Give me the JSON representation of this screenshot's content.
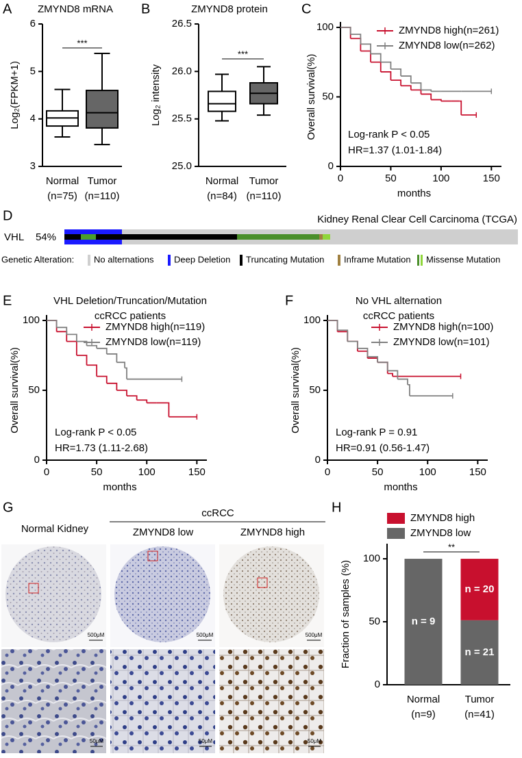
{
  "chart_data": [
    {
      "type": "box",
      "label": "A",
      "title": "ZMYND8 mRNA",
      "ylabel": "Log₂(FPKM+1)",
      "categories": [
        "Normal",
        "Tumor"
      ],
      "category_notes": [
        "(n=75)",
        "(n=110)"
      ],
      "boxes": [
        {
          "min": 3.62,
          "q1": 3.85,
          "median": 4.02,
          "q3": 4.17,
          "max": 4.62
        },
        {
          "min": 3.46,
          "q1": 3.81,
          "median": 4.13,
          "q3": 4.6,
          "max": 5.38
        }
      ],
      "colors": [
        "#ffffff",
        "#666666"
      ],
      "ylim": [
        3,
        6
      ],
      "yticks": [
        3,
        4,
        5,
        6
      ],
      "significance": "***"
    },
    {
      "type": "box",
      "label": "B",
      "title": "ZMYND8 protein",
      "ylabel": "Log₂ intensity",
      "categories": [
        "Normal",
        "Tumor"
      ],
      "category_notes": [
        "(n=84)",
        "(n=110)"
      ],
      "boxes": [
        {
          "min": 25.48,
          "q1": 25.58,
          "median": 25.66,
          "q3": 25.79,
          "max": 25.97
        },
        {
          "min": 25.54,
          "q1": 25.66,
          "median": 25.77,
          "q3": 25.88,
          "max": 26.05
        }
      ],
      "colors": [
        "#ffffff",
        "#666666"
      ],
      "ylim": [
        25,
        26.5
      ],
      "yticks": [
        {
          "value": 25,
          "label": "25.0"
        },
        25.5,
        {
          "value": 26,
          "label": "26.0"
        },
        26.5
      ],
      "significance": "***"
    },
    {
      "type": "survival",
      "label": "C",
      "xlabel": "months",
      "ylabel": "Overall survival(%)",
      "xlim": [
        0,
        160
      ],
      "xticks": [
        0,
        50,
        100,
        150
      ],
      "ylim": [
        0,
        100
      ],
      "yticks": [
        0,
        50,
        100
      ],
      "series": [
        {
          "name": "ZMYND8 high(n=261)",
          "color": "#c8102e",
          "x": [
            0,
            10,
            20,
            30,
            40,
            50,
            60,
            70,
            80,
            90,
            100,
            110,
            118,
            120,
            135
          ],
          "values": [
            100,
            92,
            83,
            75,
            68,
            62,
            58,
            55,
            52,
            48,
            47,
            47,
            47,
            37,
            37
          ]
        },
        {
          "name": "ZMYND8 low(n=262)",
          "color": "#808080",
          "x": [
            0,
            10,
            20,
            30,
            40,
            50,
            60,
            70,
            80,
            90,
            100,
            120,
            150
          ],
          "values": [
            100,
            95,
            88,
            81,
            75,
            70,
            65,
            60,
            55,
            54,
            54,
            54,
            54
          ]
        }
      ],
      "annotations": [
        "Log-rank P < 0.05",
        "HR=1.37 (1.01-1.84)"
      ]
    },
    {
      "type": "survival",
      "label": "E",
      "title": [
        "VHL Deletion/Truncation/Mutation",
        "ccRCC patients"
      ],
      "xlabel": "months",
      "ylabel": "Overall survival(%)",
      "xlim": [
        0,
        160
      ],
      "xticks": [
        0,
        50,
        100,
        150
      ],
      "ylim": [
        0,
        100
      ],
      "yticks": [
        0,
        50,
        100
      ],
      "series": [
        {
          "name": "ZMYND8 high(n=119)",
          "color": "#c8102e",
          "x": [
            0,
            10,
            20,
            30,
            40,
            50,
            60,
            70,
            80,
            90,
            100,
            110,
            120,
            122,
            150
          ],
          "values": [
            100,
            92,
            85,
            75,
            68,
            60,
            55,
            50,
            46,
            43,
            41,
            41,
            41,
            31,
            31
          ]
        },
        {
          "name": "ZMYND8 low(n=119)",
          "color": "#808080",
          "x": [
            0,
            10,
            20,
            30,
            40,
            50,
            60,
            70,
            78,
            80,
            135
          ],
          "values": [
            100,
            95,
            90,
            85,
            82,
            80,
            76,
            70,
            66,
            58,
            58
          ]
        }
      ],
      "annotations": [
        "Log-rank P < 0.05",
        "HR=1.73 (1.11-2.68)"
      ]
    },
    {
      "type": "survival",
      "label": "F",
      "title": [
        "No VHL alternation",
        "ccRCC patients"
      ],
      "xlabel": "months",
      "ylabel": "Overall survival(%)",
      "xlim": [
        0,
        160
      ],
      "xticks": [
        0,
        50,
        100,
        150
      ],
      "ylim": [
        0,
        100
      ],
      "yticks": [
        0,
        50,
        100
      ],
      "series": [
        {
          "name": "ZMYND8 high(n=100)",
          "color": "#c8102e",
          "x": [
            0,
            10,
            20,
            30,
            40,
            50,
            60,
            65,
            133
          ],
          "values": [
            100,
            92,
            85,
            78,
            73,
            70,
            62,
            60,
            60
          ]
        },
        {
          "name": "ZMYND8 low(n=101)",
          "color": "#808080",
          "x": [
            0,
            10,
            20,
            30,
            40,
            50,
            60,
            70,
            80,
            82,
            125
          ],
          "values": [
            100,
            93,
            85,
            80,
            74,
            70,
            64,
            58,
            54,
            46,
            46
          ]
        }
      ],
      "annotations": [
        "Log-rank P = 0.91",
        "HR=0.91 (0.56-1.47)"
      ]
    },
    {
      "type": "stacked_bar",
      "label": "H",
      "ylabel": "Fraction of samples (%)",
      "categories": [
        "Normal",
        "Tumor"
      ],
      "category_notes": [
        "(n=9)",
        "(n=41)"
      ],
      "series": [
        {
          "name": "ZMYND8 low",
          "color": "#666666",
          "values": [
            100,
            51.2
          ],
          "segment_labels": [
            "n = 9",
            "n = 21"
          ]
        },
        {
          "name": "ZMYND8 high",
          "color": "#c8102e",
          "values": [
            0,
            48.8
          ],
          "segment_labels": [
            null,
            "n = 20"
          ]
        }
      ],
      "ylim": [
        0,
        112
      ],
      "yticks": [
        0,
        50,
        100
      ],
      "significance": "**"
    }
  ],
  "oncoprint": {
    "label": "D",
    "title": "Kidney Renal Clear Cell Carcinoma (TCGA)",
    "gene": "VHL",
    "altered": "54%",
    "legend_title": "Genetic Alteration:",
    "legend": [
      "No alternations",
      "Deep Deletion",
      "Truncating Mutation",
      "Inframe Mutation",
      "Missense Mutation"
    ]
  },
  "ihc": {
    "label": "G",
    "normal": "Normal Kidney",
    "group": "ccRCC",
    "low": "ZMYND8 low",
    "high": "ZMYND8 high",
    "scale_core": "500μM",
    "scale_zoom": "50μM"
  }
}
